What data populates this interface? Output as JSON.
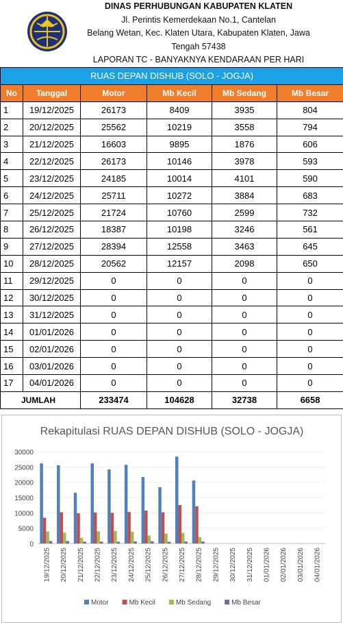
{
  "header": {
    "title": "DINAS PERHUBUNGAN KABUPATEN KLATEN",
    "address": [
      "Jl. Perintis Kemerdekaan No.1, Cantelan",
      "Belang Wetan, Kec. Klaten Utara, Kabupaten Klaten, Jawa",
      "Tengah 57438"
    ],
    "report_title": "LAPORAN TC - BANYAKNYA KENDARAAN PER HARI",
    "section_title": "RUAS DEPAN DISHUB (SOLO - JOGJA)"
  },
  "table": {
    "columns": [
      "No",
      "Tanggal",
      "Motor",
      "Mb Kecil",
      "Mb Sedang",
      "Mb Besar"
    ],
    "rows": [
      [
        1,
        "19/12/2025",
        26173,
        8409,
        3935,
        804
      ],
      [
        2,
        "20/12/2025",
        25562,
        10219,
        3558,
        794
      ],
      [
        3,
        "21/12/2025",
        16603,
        9895,
        1876,
        606
      ],
      [
        4,
        "22/12/2025",
        26173,
        10146,
        3978,
        593
      ],
      [
        5,
        "23/12/2025",
        24185,
        10014,
        4101,
        590
      ],
      [
        6,
        "24/12/2025",
        25711,
        10272,
        3884,
        683
      ],
      [
        7,
        "25/12/2025",
        21724,
        10760,
        2599,
        732
      ],
      [
        8,
        "26/12/2025",
        18387,
        10198,
        3246,
        561
      ],
      [
        9,
        "27/12/2025",
        28394,
        12558,
        3463,
        645
      ],
      [
        10,
        "28/12/2025",
        20562,
        12157,
        2098,
        650
      ],
      [
        11,
        "29/12/2025",
        0,
        0,
        0,
        0
      ],
      [
        12,
        "30/12/2025",
        0,
        0,
        0,
        0
      ],
      [
        13,
        "31/12/2025",
        0,
        0,
        0,
        0
      ],
      [
        14,
        "01/01/2026",
        0,
        0,
        0,
        0
      ],
      [
        15,
        "02/01/2026",
        0,
        0,
        0,
        0
      ],
      [
        16,
        "03/01/2026",
        0,
        0,
        0,
        0
      ],
      [
        17,
        "04/01/2026",
        0,
        0,
        0,
        0
      ]
    ],
    "total": {
      "label": "JUMLAH",
      "values": [
        233474,
        104628,
        32738,
        6658
      ]
    }
  },
  "chart_data": {
    "type": "bar",
    "title": "Rekapitulasi RUAS DEPAN DISHUB (SOLO - JOGJA)",
    "categories": [
      "19/12/2025",
      "20/12/2025",
      "21/12/2025",
      "22/12/2025",
      "23/12/2025",
      "24/12/2025",
      "25/12/2025",
      "26/12/2025",
      "27/12/2025",
      "28/12/2025",
      "29/12/2025",
      "30/12/2025",
      "31/12/2025",
      "01/01/2026",
      "02/01/2026",
      "03/01/2026",
      "04/01/2026"
    ],
    "series": [
      {
        "name": "Motor",
        "color": "#4f81bd",
        "values": [
          26173,
          25562,
          16603,
          26173,
          24185,
          25711,
          21724,
          18387,
          28394,
          20562,
          0,
          0,
          0,
          0,
          0,
          0,
          0
        ]
      },
      {
        "name": "Mb Kecil",
        "color": "#c0504d",
        "values": [
          8409,
          10219,
          9895,
          10146,
          10014,
          10272,
          10760,
          10198,
          12558,
          12157,
          0,
          0,
          0,
          0,
          0,
          0,
          0
        ]
      },
      {
        "name": "Mb Sedang",
        "color": "#9bbb59",
        "values": [
          3935,
          3558,
          1876,
          3978,
          4101,
          3884,
          2599,
          3246,
          3463,
          2098,
          0,
          0,
          0,
          0,
          0,
          0,
          0
        ]
      },
      {
        "name": "Mb Besar",
        "color": "#8064a2",
        "values": [
          804,
          794,
          606,
          593,
          590,
          683,
          732,
          561,
          645,
          650,
          0,
          0,
          0,
          0,
          0,
          0,
          0
        ]
      }
    ],
    "ylim": [
      0,
      30000
    ],
    "yticks": [
      0,
      5000,
      10000,
      15000,
      20000,
      25000,
      30000
    ],
    "grid": true,
    "legend": "bottom"
  }
}
